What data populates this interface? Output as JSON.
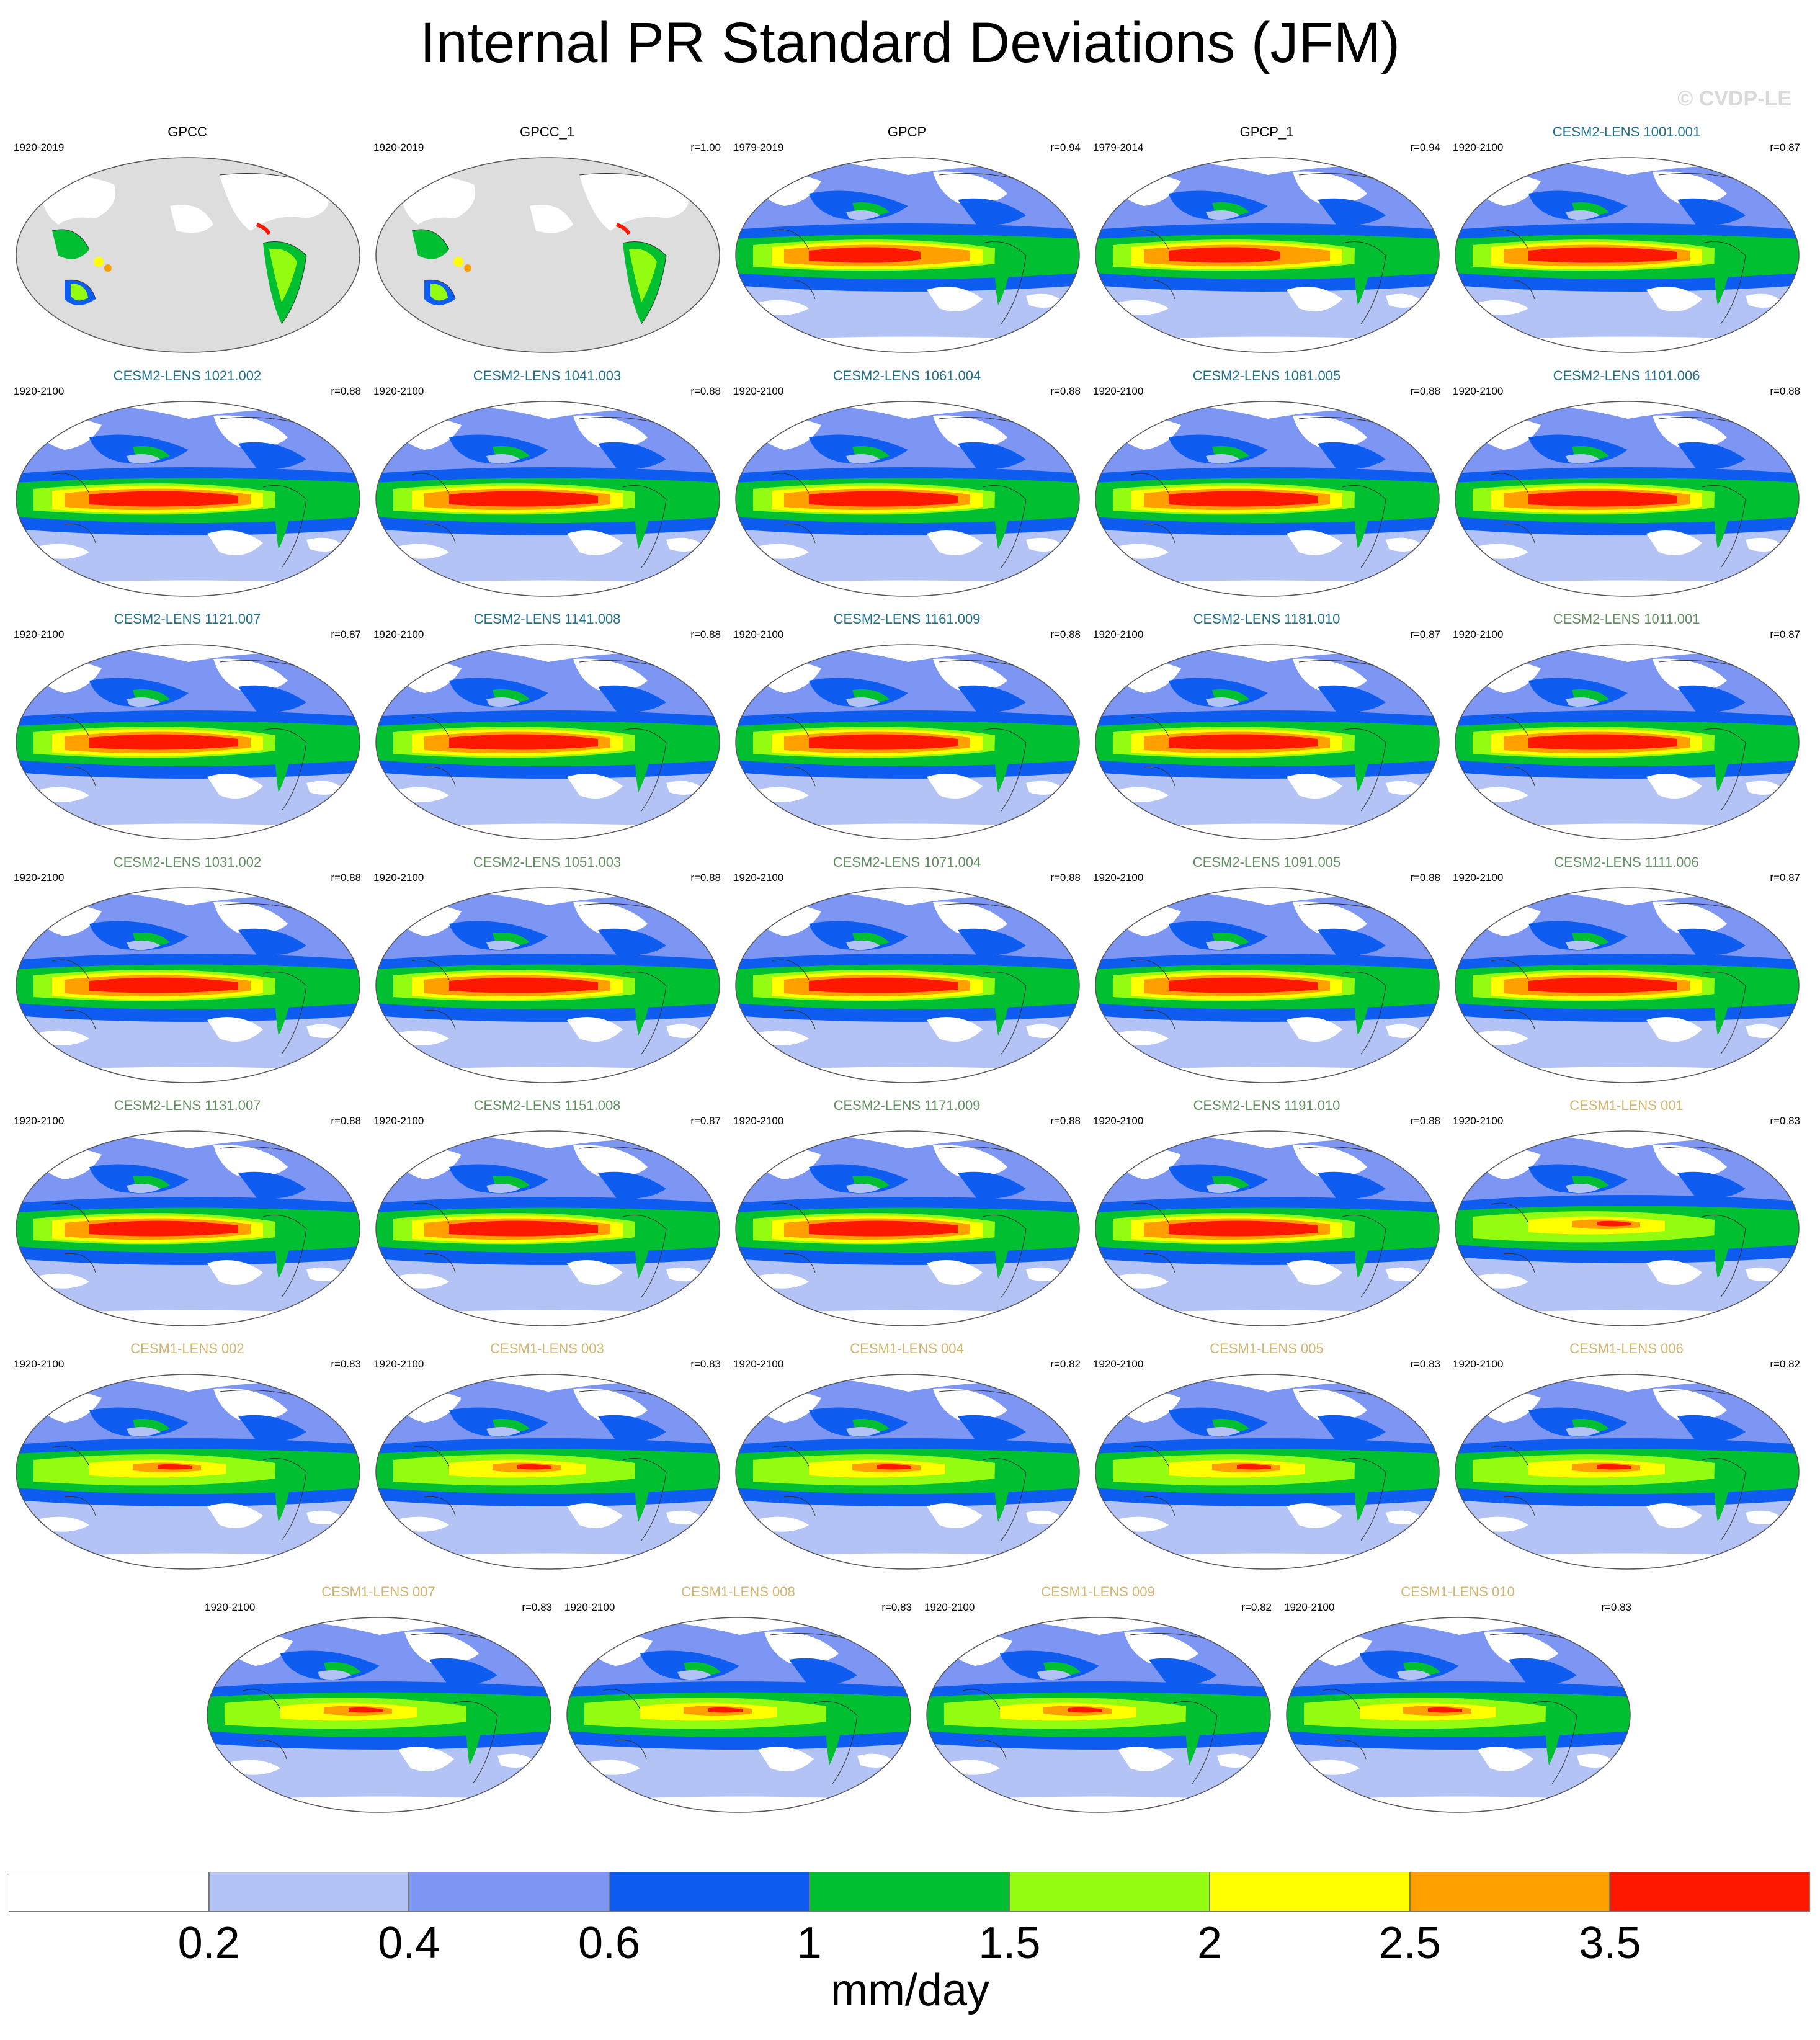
{
  "title": "Internal PR Standard Deviations (JFM)",
  "copyright": "© CVDP-LE",
  "colors": {
    "observation_title": "#000000",
    "cesm2_lens_macro_title": "#1f6f8a",
    "cesm2_lens_smbb_title": "#5f8f5f",
    "cesm1_lens_title": "#d2b670",
    "map_land_masked": "#dddddd"
  },
  "panels": [
    {
      "title": "GPCC",
      "years": "1920-2019",
      "r": "",
      "group": "obs",
      "field": "gpcc"
    },
    {
      "title": "GPCC_1",
      "years": "1920-2019",
      "r": "r=1.00",
      "group": "obs",
      "field": "gpcc"
    },
    {
      "title": "GPCP",
      "years": "1979-2019",
      "r": "r=0.94",
      "group": "obs",
      "field": "gpcp"
    },
    {
      "title": "GPCP_1",
      "years": "1979-2014",
      "r": "r=0.94",
      "group": "obs",
      "field": "gpcp"
    },
    {
      "title": "CESM2-LENS 1001.001",
      "years": "1920-2100",
      "r": "r=0.87",
      "group": "cesm2a",
      "field": "cesm2"
    },
    {
      "title": "CESM2-LENS 1021.002",
      "years": "1920-2100",
      "r": "r=0.88",
      "group": "cesm2a",
      "field": "cesm2"
    },
    {
      "title": "CESM2-LENS 1041.003",
      "years": "1920-2100",
      "r": "r=0.88",
      "group": "cesm2a",
      "field": "cesm2"
    },
    {
      "title": "CESM2-LENS 1061.004",
      "years": "1920-2100",
      "r": "r=0.88",
      "group": "cesm2a",
      "field": "cesm2"
    },
    {
      "title": "CESM2-LENS 1081.005",
      "years": "1920-2100",
      "r": "r=0.88",
      "group": "cesm2a",
      "field": "cesm2"
    },
    {
      "title": "CESM2-LENS 1101.006",
      "years": "1920-2100",
      "r": "r=0.88",
      "group": "cesm2a",
      "field": "cesm2"
    },
    {
      "title": "CESM2-LENS 1121.007",
      "years": "1920-2100",
      "r": "r=0.87",
      "group": "cesm2a",
      "field": "cesm2"
    },
    {
      "title": "CESM2-LENS 1141.008",
      "years": "1920-2100",
      "r": "r=0.88",
      "group": "cesm2a",
      "field": "cesm2"
    },
    {
      "title": "CESM2-LENS 1161.009",
      "years": "1920-2100",
      "r": "r=0.88",
      "group": "cesm2a",
      "field": "cesm2"
    },
    {
      "title": "CESM2-LENS 1181.010",
      "years": "1920-2100",
      "r": "r=0.87",
      "group": "cesm2a",
      "field": "cesm2"
    },
    {
      "title": "CESM2-LENS 1011.001",
      "years": "1920-2100",
      "r": "r=0.87",
      "group": "cesm2b",
      "field": "cesm2"
    },
    {
      "title": "CESM2-LENS 1031.002",
      "years": "1920-2100",
      "r": "r=0.88",
      "group": "cesm2b",
      "field": "cesm2"
    },
    {
      "title": "CESM2-LENS 1051.003",
      "years": "1920-2100",
      "r": "r=0.88",
      "group": "cesm2b",
      "field": "cesm2"
    },
    {
      "title": "CESM2-LENS 1071.004",
      "years": "1920-2100",
      "r": "r=0.88",
      "group": "cesm2b",
      "field": "cesm2"
    },
    {
      "title": "CESM2-LENS 1091.005",
      "years": "1920-2100",
      "r": "r=0.88",
      "group": "cesm2b",
      "field": "cesm2"
    },
    {
      "title": "CESM2-LENS 1111.006",
      "years": "1920-2100",
      "r": "r=0.87",
      "group": "cesm2b",
      "field": "cesm2"
    },
    {
      "title": "CESM2-LENS 1131.007",
      "years": "1920-2100",
      "r": "r=0.88",
      "group": "cesm2b",
      "field": "cesm2"
    },
    {
      "title": "CESM2-LENS 1151.008",
      "years": "1920-2100",
      "r": "r=0.87",
      "group": "cesm2b",
      "field": "cesm2"
    },
    {
      "title": "CESM2-LENS 1171.009",
      "years": "1920-2100",
      "r": "r=0.88",
      "group": "cesm2b",
      "field": "cesm2"
    },
    {
      "title": "CESM2-LENS 1191.010",
      "years": "1920-2100",
      "r": "r=0.88",
      "group": "cesm2b",
      "field": "cesm2"
    },
    {
      "title": "CESM1-LENS 001",
      "years": "1920-2100",
      "r": "r=0.83",
      "group": "cesm1",
      "field": "cesm1"
    },
    {
      "title": "CESM1-LENS 002",
      "years": "1920-2100",
      "r": "r=0.83",
      "group": "cesm1",
      "field": "cesm1"
    },
    {
      "title": "CESM1-LENS 003",
      "years": "1920-2100",
      "r": "r=0.83",
      "group": "cesm1",
      "field": "cesm1"
    },
    {
      "title": "CESM1-LENS 004",
      "years": "1920-2100",
      "r": "r=0.82",
      "group": "cesm1",
      "field": "cesm1"
    },
    {
      "title": "CESM1-LENS 005",
      "years": "1920-2100",
      "r": "r=0.83",
      "group": "cesm1",
      "field": "cesm1"
    },
    {
      "title": "CESM1-LENS 006",
      "years": "1920-2100",
      "r": "r=0.82",
      "group": "cesm1",
      "field": "cesm1"
    },
    {
      "title": "CESM1-LENS 007",
      "years": "1920-2100",
      "r": "r=0.83",
      "group": "cesm1",
      "field": "cesm1"
    },
    {
      "title": "CESM1-LENS 008",
      "years": "1920-2100",
      "r": "r=0.83",
      "group": "cesm1",
      "field": "cesm1"
    },
    {
      "title": "CESM1-LENS 009",
      "years": "1920-2100",
      "r": "r=0.82",
      "group": "cesm1",
      "field": "cesm1"
    },
    {
      "title": "CESM1-LENS 010",
      "years": "1920-2100",
      "r": "r=0.83",
      "group": "cesm1",
      "field": "cesm1"
    }
  ],
  "colorbar": {
    "units": "mm/day",
    "labels": [
      "0.2",
      "0.4",
      "0.6",
      "1",
      "1.5",
      "2",
      "2.5",
      "3.5"
    ],
    "colors": [
      "#ffffff",
      "#b3c3f5",
      "#7d96f3",
      "#0e5cf0",
      "#00c032",
      "#93fc11",
      "#ffff00",
      "#ff9f00",
      "#ff1800"
    ]
  }
}
